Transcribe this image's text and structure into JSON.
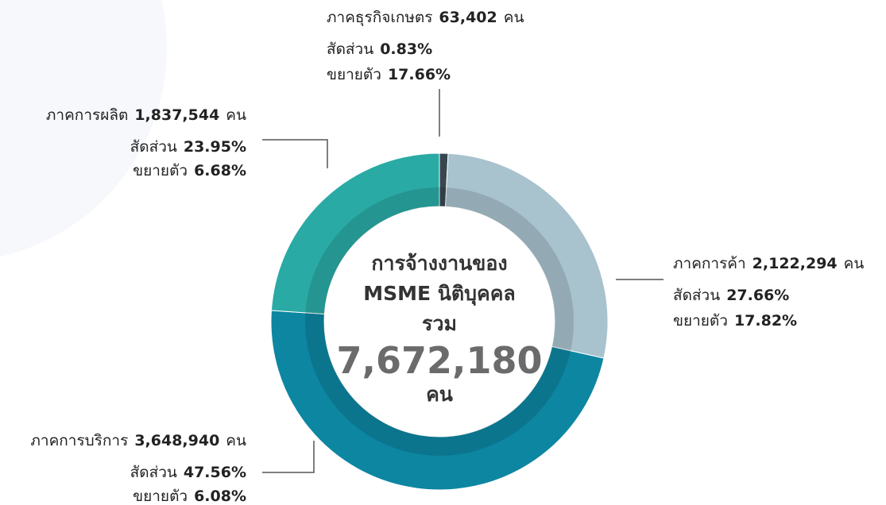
{
  "chart_data": {
    "type": "donut",
    "categories": [
      "ภาคธุรกิจเกษตร",
      "ภาคการค้า",
      "ภาคการบริการ",
      "ภาคการผลิต"
    ],
    "values": [
      63402,
      2122294,
      3648940,
      1837544
    ],
    "value_labels": [
      "63,402",
      "2,122,294",
      "3,648,940",
      "1,837,544"
    ],
    "unit": "คน",
    "share_title": "สัดส่วน",
    "shares": [
      0.83,
      27.66,
      47.56,
      23.95
    ],
    "share_labels": [
      "0.83%",
      "27.66%",
      "47.56%",
      "23.95%"
    ],
    "growth_title": "ขยายตัว",
    "growth": [
      17.66,
      17.82,
      6.08,
      6.68
    ],
    "growth_labels": [
      "17.66%",
      "17.82%",
      "6.08%",
      "6.68%"
    ],
    "colors": [
      "#37474f",
      "#a8c2ce",
      "#0d86a1",
      "#2aaaa4"
    ],
    "center": {
      "lines": [
        "การจ้างงานของ",
        "MSME นิติบุคคล",
        "รวม"
      ],
      "total": 7672180,
      "total_label": "7,672,180",
      "unit": "คน"
    }
  }
}
